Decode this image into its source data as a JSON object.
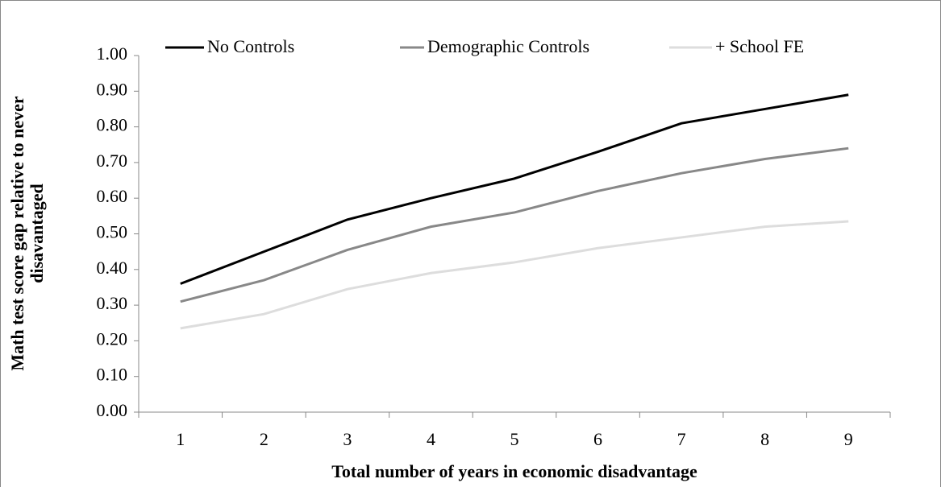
{
  "chart_data": {
    "type": "line",
    "x_label": "Total number of years in economic disadvantage",
    "y_label": "Math test score gap relative to never disavantaged",
    "categories": [
      "1",
      "2",
      "3",
      "4",
      "5",
      "6",
      "7",
      "8",
      "9"
    ],
    "series": [
      {
        "name": "No Controls",
        "color": "#000000",
        "values": [
          0.36,
          0.45,
          0.54,
          0.6,
          0.655,
          0.73,
          0.81,
          0.85,
          0.89
        ]
      },
      {
        "name": "Demographic Controls",
        "color": "#888888",
        "values": [
          0.31,
          0.37,
          0.455,
          0.52,
          0.56,
          0.62,
          0.67,
          0.71,
          0.74
        ]
      },
      {
        "name": "+ School FE",
        "color": "#dddddd",
        "values": [
          0.235,
          0.275,
          0.345,
          0.39,
          0.42,
          0.46,
          0.49,
          0.52,
          0.535
        ]
      }
    ],
    "ylim": [
      0,
      1
    ],
    "yticks": [
      {
        "value": 0,
        "label": "0.00"
      },
      {
        "value": 0.1,
        "label": "0.10"
      },
      {
        "value": 0.2,
        "label": "0.20"
      },
      {
        "value": 0.3,
        "label": "0.30"
      },
      {
        "value": 0.4,
        "label": "0.40"
      },
      {
        "value": 0.5,
        "label": "0.50"
      },
      {
        "value": 0.6,
        "label": "0.60"
      },
      {
        "value": 0.7,
        "label": "0.70"
      },
      {
        "value": 0.8,
        "label": "0.80"
      },
      {
        "value": 0.9,
        "label": "0.90"
      },
      {
        "value": 1,
        "label": "1.00"
      }
    ],
    "grid": false
  }
}
